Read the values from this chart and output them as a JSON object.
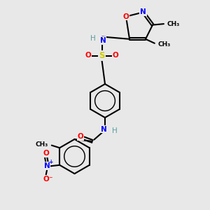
{
  "bg_color": "#e8e8e8",
  "bond_color": "#000000",
  "bond_width": 1.5,
  "atom_colors": {
    "C": "#000000",
    "H": "#5a9ea0",
    "N": "#0000ff",
    "O": "#ff0000",
    "S": "#cccc00"
  },
  "font_size": 7.5,
  "fig_size": [
    3.0,
    3.0
  ],
  "dpi": 100,
  "xlim": [
    0,
    10
  ],
  "ylim": [
    0,
    10
  ]
}
